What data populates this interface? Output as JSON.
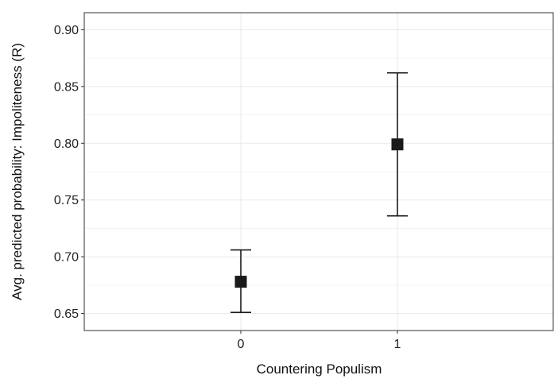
{
  "chart_data": {
    "type": "scatter",
    "subtype": "point-with-error-bars",
    "xlabel": "Countering Populism",
    "ylabel": "Avg. predicted probability: Impoliteness (R)",
    "categories": [
      "0",
      "1"
    ],
    "points": [
      {
        "x": "0",
        "y": 0.678,
        "lower": 0.651,
        "upper": 0.706
      },
      {
        "x": "1",
        "y": 0.799,
        "lower": 0.736,
        "upper": 0.862
      }
    ],
    "ylim": [
      0.635,
      0.915
    ],
    "yticks": [
      0.65,
      0.7,
      0.75,
      0.8,
      0.85,
      0.9
    ],
    "ytick_labels": [
      "0.65",
      "0.70",
      "0.75",
      "0.80",
      "0.85",
      "0.90"
    ],
    "grid": true,
    "marker": "square",
    "colors": {
      "marker": "#1a1a1a",
      "grid": "#ebebeb",
      "axis": "#333333"
    }
  }
}
